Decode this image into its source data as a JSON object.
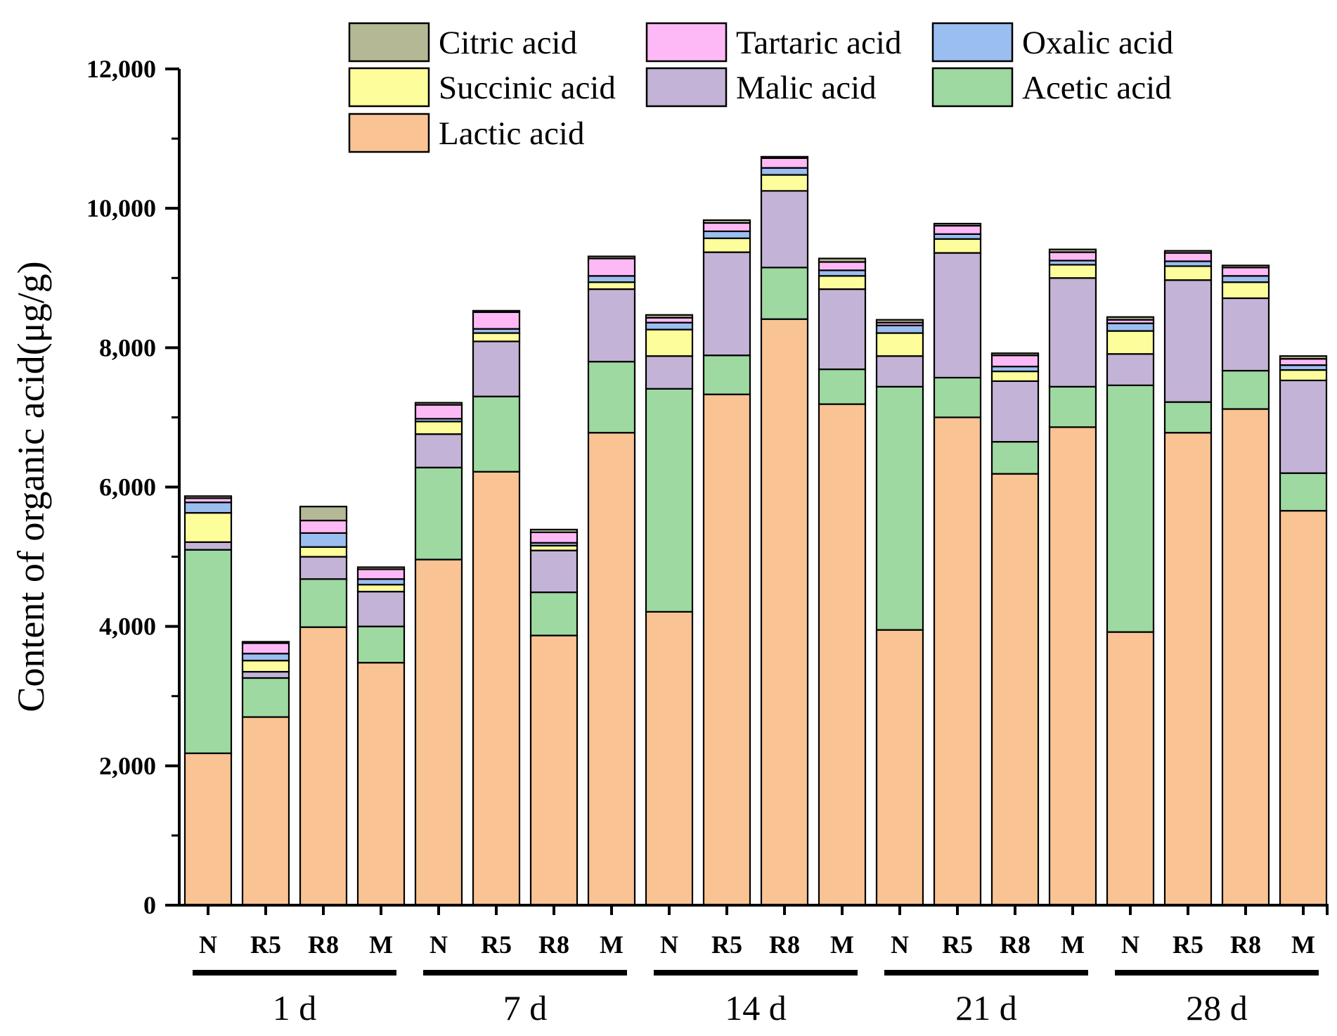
{
  "chart_data": {
    "type": "bar",
    "stacked": true,
    "ylabel": "Content of organic acid(μg/g)",
    "xlabel": "",
    "ylim": [
      0,
      12000
    ],
    "yticks": [
      0,
      2000,
      4000,
      6000,
      8000,
      10000,
      12000
    ],
    "ytick_labels": [
      "0",
      "2,000",
      "4,000",
      "6,000",
      "8,000",
      "10,000",
      "12,000"
    ],
    "grid": false,
    "legend_position": "top",
    "groups": [
      {
        "label": "1 d",
        "categories": [
          "N",
          "R5",
          "R8",
          "M"
        ]
      },
      {
        "label": "7 d",
        "categories": [
          "N",
          "R5",
          "R8",
          "M"
        ]
      },
      {
        "label": "14 d",
        "categories": [
          "N",
          "R5",
          "R8",
          "M"
        ]
      },
      {
        "label": "21 d",
        "categories": [
          "N",
          "R5",
          "R8",
          "M"
        ]
      },
      {
        "label": "28 d",
        "categories": [
          "N",
          "R5",
          "R8",
          "M"
        ]
      }
    ],
    "series": [
      {
        "name": "Lactic acid",
        "color": "#f9c394",
        "values": [
          2180,
          2700,
          3990,
          3480,
          4960,
          6220,
          3870,
          6780,
          4210,
          7330,
          8410,
          7190,
          3950,
          7000,
          6190,
          6860,
          3920,
          6780,
          7120,
          5660
        ]
      },
      {
        "name": "Acetic acid",
        "color": "#9dd9a0",
        "values": [
          2920,
          560,
          690,
          520,
          1320,
          1080,
          620,
          1020,
          3200,
          560,
          740,
          500,
          3490,
          570,
          460,
          580,
          3540,
          440,
          550,
          540
        ]
      },
      {
        "name": "Malic acid",
        "color": "#c3b3d6",
        "values": [
          110,
          90,
          320,
          500,
          480,
          790,
          600,
          1040,
          470,
          1480,
          1100,
          1150,
          440,
          1790,
          870,
          1560,
          450,
          1750,
          1040,
          1330
        ]
      },
      {
        "name": "Succinic acid",
        "color": "#fdfd9b",
        "values": [
          420,
          160,
          140,
          100,
          180,
          120,
          70,
          100,
          380,
          200,
          230,
          190,
          330,
          200,
          140,
          190,
          330,
          200,
          230,
          150
        ]
      },
      {
        "name": "Oxalic acid",
        "color": "#9bbef0",
        "values": [
          150,
          100,
          200,
          80,
          40,
          60,
          40,
          90,
          100,
          100,
          100,
          80,
          110,
          70,
          70,
          60,
          110,
          70,
          90,
          70
        ]
      },
      {
        "name": "Tartaric acid",
        "color": "#fdb9f5",
        "values": [
          60,
          150,
          180,
          140,
          200,
          240,
          150,
          250,
          70,
          120,
          140,
          120,
          40,
          120,
          160,
          120,
          50,
          120,
          120,
          90
        ]
      },
      {
        "name": "Citric acid",
        "color": "#b4b894",
        "values": [
          30,
          20,
          200,
          30,
          30,
          20,
          40,
          30,
          40,
          40,
          20,
          50,
          40,
          30,
          30,
          40,
          40,
          30,
          30,
          40
        ]
      }
    ],
    "legend_order": [
      "Citric acid",
      "Tartaric acid",
      "Oxalic acid",
      "Succinic acid",
      "Malic acid",
      "Acetic acid",
      "Lactic acid"
    ]
  }
}
